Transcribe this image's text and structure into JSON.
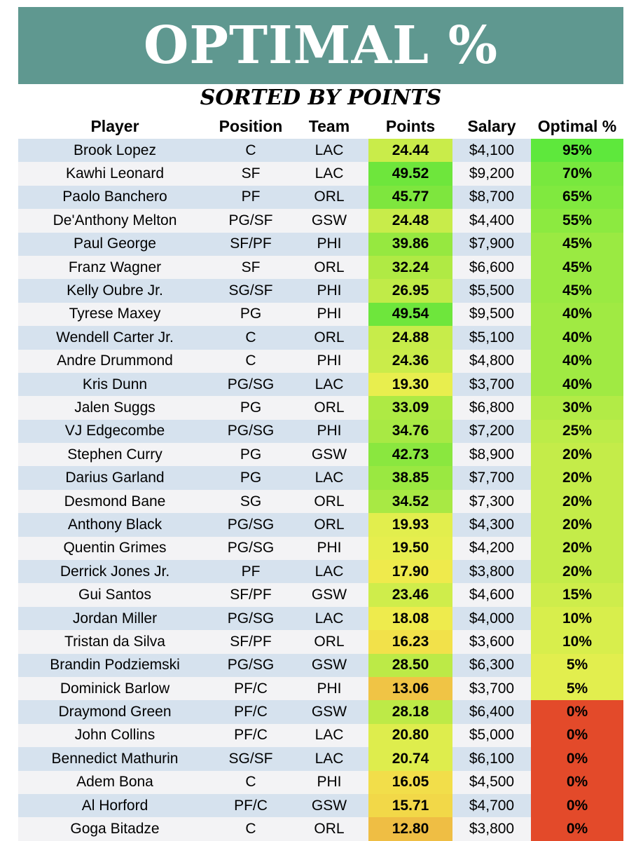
{
  "header": {
    "title": "OPTIMAL %",
    "subtitle": "SORTED BY POINTS",
    "banner_color": "#5f9890"
  },
  "table": {
    "columns": [
      "Player",
      "Position",
      "Team",
      "Points",
      "Salary",
      "Optimal %"
    ],
    "rows": [
      {
        "player": "Brook Lopez",
        "position": "C",
        "team": "LAC",
        "points": "24.44",
        "salary": "$4,100",
        "optimal": "95%",
        "points_color": "#c9ec4a",
        "optimal_color": "#5ee83c"
      },
      {
        "player": "Kawhi Leonard",
        "position": "SF",
        "team": "LAC",
        "points": "49.52",
        "salary": "$9,200",
        "optimal": "70%",
        "points_color": "#6ee63c",
        "optimal_color": "#78e83e"
      },
      {
        "player": "Paolo Banchero",
        "position": "PF",
        "team": "ORL",
        "points": "45.77",
        "salary": "$8,700",
        "optimal": "65%",
        "points_color": "#7ee63e",
        "optimal_color": "#80e93f"
      },
      {
        "player": "De'Anthony Melton",
        "position": "PG/SF",
        "team": "GSW",
        "points": "24.48",
        "salary": "$4,400",
        "optimal": "55%",
        "points_color": "#c8ec4a",
        "optimal_color": "#8cea40"
      },
      {
        "player": "Paul George",
        "position": "SF/PF",
        "team": "PHI",
        "points": "39.86",
        "salary": "$7,900",
        "optimal": "45%",
        "points_color": "#96e840",
        "optimal_color": "#9aea42"
      },
      {
        "player": "Franz Wagner",
        "position": "SF",
        "team": "ORL",
        "points": "32.24",
        "salary": "$6,600",
        "optimal": "45%",
        "points_color": "#b0ea44",
        "optimal_color": "#9aea42"
      },
      {
        "player": "Kelly Oubre Jr.",
        "position": "SG/SF",
        "team": "PHI",
        "points": "26.95",
        "salary": "$5,500",
        "optimal": "45%",
        "points_color": "#c0eb48",
        "optimal_color": "#9aea42"
      },
      {
        "player": "Tyrese Maxey",
        "position": "PG",
        "team": "PHI",
        "points": "49.54",
        "salary": "$9,500",
        "optimal": "40%",
        "points_color": "#6ee63c",
        "optimal_color": "#a0ea43"
      },
      {
        "player": "Wendell Carter Jr.",
        "position": "C",
        "team": "ORL",
        "points": "24.88",
        "salary": "$5,100",
        "optimal": "40%",
        "points_color": "#c7ec4a",
        "optimal_color": "#a0ea43"
      },
      {
        "player": "Andre Drummond",
        "position": "C",
        "team": "PHI",
        "points": "24.36",
        "salary": "$4,800",
        "optimal": "40%",
        "points_color": "#caec4a",
        "optimal_color": "#a0ea43"
      },
      {
        "player": "Kris Dunn",
        "position": "PG/SG",
        "team": "LAC",
        "points": "19.30",
        "salary": "$3,700",
        "optimal": "40%",
        "points_color": "#e8ee4e",
        "optimal_color": "#a0ea43"
      },
      {
        "player": "Jalen Suggs",
        "position": "PG",
        "team": "ORL",
        "points": "33.09",
        "salary": "$6,800",
        "optimal": "30%",
        "points_color": "#aeea44",
        "optimal_color": "#b2eb46"
      },
      {
        "player": "VJ Edgecombe",
        "position": "PG/SG",
        "team": "PHI",
        "points": "34.76",
        "salary": "$7,200",
        "optimal": "25%",
        "points_color": "#a8e944",
        "optimal_color": "#bcec48"
      },
      {
        "player": "Stephen Curry",
        "position": "PG",
        "team": "GSW",
        "points": "42.73",
        "salary": "$8,900",
        "optimal": "20%",
        "points_color": "#8ae73f",
        "optimal_color": "#c4ec49"
      },
      {
        "player": "Darius Garland",
        "position": "PG",
        "team": "LAC",
        "points": "38.85",
        "salary": "$7,700",
        "optimal": "20%",
        "points_color": "#9ae841",
        "optimal_color": "#c4ec49"
      },
      {
        "player": "Desmond Bane",
        "position": "SG",
        "team": "ORL",
        "points": "34.52",
        "salary": "$7,300",
        "optimal": "20%",
        "points_color": "#a8e944",
        "optimal_color": "#c4ec49"
      },
      {
        "player": "Anthony Black",
        "position": "PG/SG",
        "team": "ORL",
        "points": "19.93",
        "salary": "$4,300",
        "optimal": "20%",
        "points_color": "#e2ee4d",
        "optimal_color": "#c4ec49"
      },
      {
        "player": "Quentin Grimes",
        "position": "PG/SG",
        "team": "PHI",
        "points": "19.50",
        "salary": "$4,200",
        "optimal": "20%",
        "points_color": "#e6ee4e",
        "optimal_color": "#c4ec49"
      },
      {
        "player": "Derrick Jones Jr.",
        "position": "PF",
        "team": "LAC",
        "points": "17.90",
        "salary": "$3,800",
        "optimal": "20%",
        "points_color": "#efea4c",
        "optimal_color": "#c4ec49"
      },
      {
        "player": "Gui Santos",
        "position": "SF/PF",
        "team": "GSW",
        "points": "23.46",
        "salary": "$4,600",
        "optimal": "15%",
        "points_color": "#cfed4b",
        "optimal_color": "#ceed4b"
      },
      {
        "player": "Jordan Miller",
        "position": "PG/SG",
        "team": "LAC",
        "points": "18.08",
        "salary": "$4,000",
        "optimal": "10%",
        "points_color": "#eeeb4d",
        "optimal_color": "#d8ee4c"
      },
      {
        "player": "Tristan da Silva",
        "position": "SF/PF",
        "team": "ORL",
        "points": "16.23",
        "salary": "$3,600",
        "optimal": "10%",
        "points_color": "#f2e14a",
        "optimal_color": "#d8ee4c"
      },
      {
        "player": "Brandin Podziemski",
        "position": "PG/SG",
        "team": "GSW",
        "points": "28.50",
        "salary": "$6,300",
        "optimal": "5%",
        "points_color": "#bcea47",
        "optimal_color": "#e2ee4e"
      },
      {
        "player": "Dominick Barlow",
        "position": "PF/C",
        "team": "PHI",
        "points": "13.06",
        "salary": "$3,700",
        "optimal": "5%",
        "points_color": "#f0c445",
        "optimal_color": "#e2ee4e"
      },
      {
        "player": "Draymond Green",
        "position": "PF/C",
        "team": "GSW",
        "points": "28.18",
        "salary": "$6,400",
        "optimal": "0%",
        "points_color": "#bdea47",
        "optimal_color": "#e34a2a"
      },
      {
        "player": "John Collins",
        "position": "PF/C",
        "team": "LAC",
        "points": "20.80",
        "salary": "$5,000",
        "optimal": "0%",
        "points_color": "#deed4d",
        "optimal_color": "#e34a2a"
      },
      {
        "player": "Bennedict Mathurin",
        "position": "SG/SF",
        "team": "LAC",
        "points": "20.74",
        "salary": "$6,100",
        "optimal": "0%",
        "points_color": "#deed4d",
        "optimal_color": "#e34a2a"
      },
      {
        "player": "Adem Bona",
        "position": "C",
        "team": "PHI",
        "points": "16.05",
        "salary": "$4,500",
        "optimal": "0%",
        "points_color": "#f2de4a",
        "optimal_color": "#e34a2a"
      },
      {
        "player": "Al Horford",
        "position": "PF/C",
        "team": "GSW",
        "points": "15.71",
        "salary": "$4,700",
        "optimal": "0%",
        "points_color": "#f2d848",
        "optimal_color": "#e34a2a"
      },
      {
        "player": "Goga Bitadze",
        "position": "C",
        "team": "ORL",
        "points": "12.80",
        "salary": "$3,800",
        "optimal": "0%",
        "points_color": "#efbe44",
        "optimal_color": "#e34a2a"
      }
    ]
  }
}
